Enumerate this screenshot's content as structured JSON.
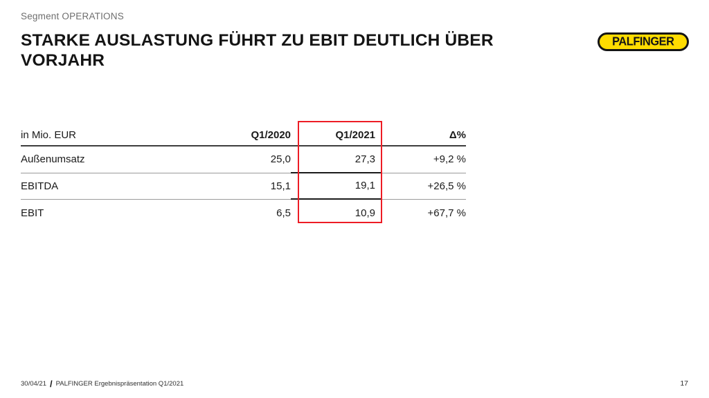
{
  "slide": {
    "kicker": "Segment OPERATIONS",
    "title": {
      "line1": "STARKE AUSLASTUNG FÜHRT ZU EBIT DEUTLICH ÜBER",
      "line2": "VORJAHR"
    }
  },
  "logo": {
    "text": "PALFINGER",
    "background_color": "#FFDC00",
    "border_color": "#141414"
  },
  "table": {
    "unit_label": "in Mio. EUR",
    "columns": {
      "prev": "Q1/2020",
      "current": "Q1/2021",
      "delta": "Δ%"
    },
    "rows": [
      {
        "label": "Außenumsatz",
        "prev": "25,0",
        "current": "27,3",
        "delta": "+9,2 %"
      },
      {
        "label": "EBITDA",
        "prev": "15,1",
        "current": "19,1",
        "delta": "+26,5 %"
      },
      {
        "label": "EBIT",
        "prev": "6,5",
        "current": "10,9",
        "delta": "+67,7 %"
      }
    ],
    "highlighted_column": "Q1/2021",
    "highlight_color": "#ED1C24"
  },
  "footer": {
    "date": "30/04/21",
    "separator": "/",
    "label": "PALFINGER Ergebnispräsentation Q1/2021",
    "page_number": "17"
  }
}
